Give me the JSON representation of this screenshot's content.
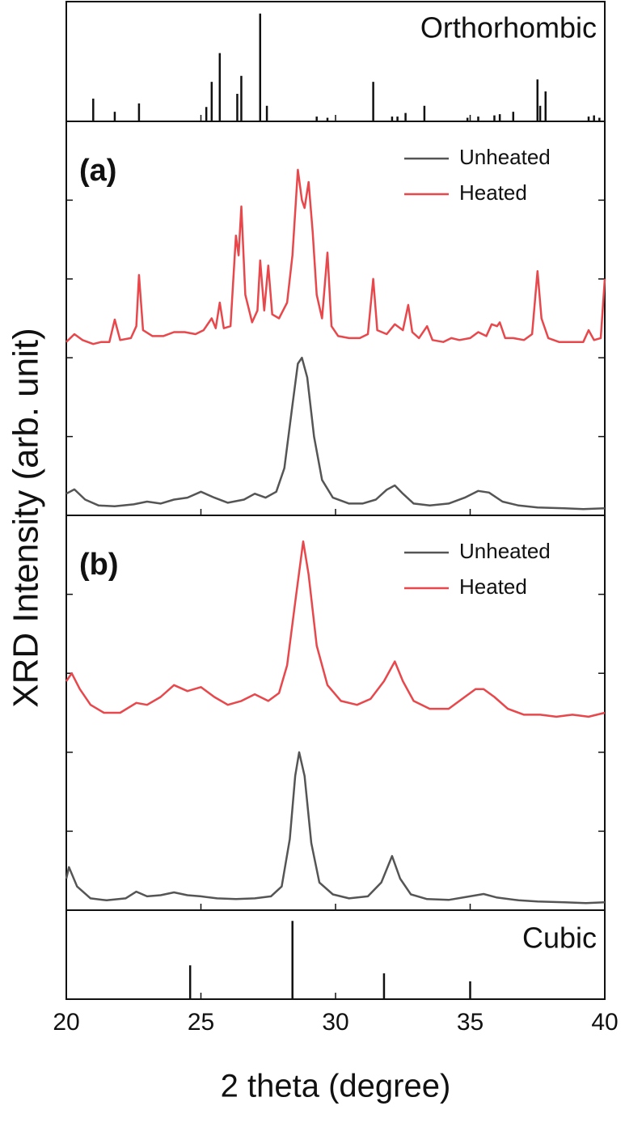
{
  "chart_data": [
    {
      "type": "stem",
      "title": "Orthorhombic",
      "ylabel": "XRD Intensity (arb. unit)",
      "xlim": [
        20,
        40
      ],
      "ylim": [
        0,
        100
      ],
      "color": "#111111",
      "x": [
        21.0,
        21.8,
        22.7,
        25.2,
        25.4,
        25.7,
        26.35,
        26.5,
        27.2,
        27.45,
        29.3,
        29.7,
        31.4,
        32.1,
        32.3,
        32.6,
        33.3,
        34.9,
        35.3,
        35.9,
        36.1,
        36.6,
        37.5,
        37.6,
        37.8,
        39.4,
        39.6,
        39.8
      ],
      "values": [
        19,
        8,
        15,
        12,
        33,
        57,
        23,
        38,
        90,
        13,
        4,
        3,
        33,
        4,
        4,
        7,
        13,
        3,
        4,
        5,
        6,
        8,
        35,
        13,
        25,
        4,
        5,
        3
      ]
    },
    {
      "type": "line",
      "title": "(a)",
      "xlim": [
        20,
        40
      ],
      "ylim": [
        0,
        100
      ],
      "yticks": [
        0,
        20,
        40,
        60,
        80,
        100
      ],
      "series": [
        {
          "name": "Unheated",
          "color": "#555555",
          "x": [
            20,
            20.3,
            20.7,
            21.2,
            21.8,
            22.5,
            23,
            23.5,
            24,
            24.5,
            25,
            25.5,
            26,
            26.6,
            27,
            27.4,
            27.8,
            28.1,
            28.4,
            28.6,
            28.75,
            28.95,
            29.2,
            29.5,
            29.9,
            30.5,
            31,
            31.5,
            31.9,
            32.2,
            32.5,
            32.9,
            33.5,
            34.2,
            34.8,
            35.3,
            35.7,
            36.2,
            36.8,
            37.5,
            38.5,
            39.2,
            40
          ],
          "values": [
            5.5,
            6.6,
            4,
            2.5,
            2.3,
            2.8,
            3.5,
            3,
            4,
            4.5,
            6,
            4.5,
            3.2,
            4,
            5.5,
            4.5,
            6,
            12,
            28,
            38.5,
            40,
            35,
            20,
            9,
            4.5,
            3,
            3,
            4,
            6.5,
            7.6,
            5.5,
            3,
            2.5,
            3,
            4.5,
            6.2,
            5.8,
            3.5,
            2.5,
            2,
            1.8,
            1.6,
            1.8
          ]
        },
        {
          "name": "Heated",
          "color": "#e8474b",
          "x": [
            20,
            20.3,
            20.6,
            21,
            21.3,
            21.6,
            21.8,
            22,
            22.4,
            22.6,
            22.7,
            22.85,
            23.2,
            23.6,
            24,
            24.4,
            24.8,
            25.1,
            25.4,
            25.55,
            25.7,
            25.85,
            26.1,
            26.3,
            26.4,
            26.5,
            26.65,
            26.9,
            27.1,
            27.2,
            27.35,
            27.5,
            27.65,
            27.9,
            28.2,
            28.4,
            28.6,
            28.75,
            28.85,
            29.0,
            29.15,
            29.3,
            29.5,
            29.7,
            29.85,
            30.1,
            30.5,
            30.9,
            31.2,
            31.4,
            31.55,
            31.9,
            32.2,
            32.5,
            32.7,
            32.85,
            33.1,
            33.4,
            33.6,
            34,
            34.3,
            34.6,
            35,
            35.3,
            35.6,
            35.8,
            36,
            36.1,
            36.3,
            36.6,
            37,
            37.3,
            37.5,
            37.65,
            37.9,
            38.3,
            38.8,
            39.2,
            39.4,
            39.6,
            39.85,
            40
          ],
          "values": [
            44,
            46,
            44.5,
            43.5,
            44,
            44,
            49.7,
            44.5,
            45,
            48,
            61,
            47,
            45.5,
            45.5,
            46.5,
            46.5,
            46,
            47,
            50,
            47.5,
            54,
            47.5,
            48,
            71,
            66,
            78.4,
            56,
            49,
            52,
            64.7,
            52,
            63.4,
            51,
            50,
            54,
            66,
            87.7,
            80,
            78,
            84.6,
            72,
            56,
            50,
            66.7,
            48,
            45.5,
            45,
            45,
            46,
            60,
            47,
            46,
            48.5,
            47,
            53.4,
            46.5,
            45,
            48,
            44.5,
            44,
            45,
            44.5,
            45,
            46.5,
            45.5,
            48.5,
            48,
            49,
            45,
            45,
            44.5,
            46,
            62,
            50,
            45,
            44,
            44,
            44,
            47,
            44.5,
            45,
            60
          ]
        }
      ]
    },
    {
      "type": "line",
      "title": "(b)",
      "xlim": [
        20,
        40
      ],
      "ylim": [
        0,
        100
      ],
      "yticks": [
        0,
        20,
        40,
        60,
        80,
        100
      ],
      "series": [
        {
          "name": "Unheated",
          "color": "#555555",
          "x": [
            20,
            20.1,
            20.4,
            20.9,
            21.5,
            22.2,
            22.6,
            23,
            23.5,
            24,
            24.5,
            25,
            25.6,
            26.3,
            27,
            27.6,
            28,
            28.3,
            28.5,
            28.65,
            28.85,
            29.1,
            29.4,
            29.9,
            30.5,
            31.2,
            31.7,
            32.1,
            32.4,
            32.8,
            33.4,
            34.2,
            34.9,
            35.5,
            36,
            36.8,
            37.5,
            38.5,
            39.3,
            40
          ],
          "values": [
            8,
            10.9,
            6,
            3,
            2.5,
            3,
            4.7,
            3.5,
            3.8,
            4.5,
            3.8,
            3.5,
            3,
            2.8,
            3,
            3.5,
            6,
            18,
            34,
            40,
            34,
            17,
            7,
            4,
            3,
            3.5,
            7,
            13.7,
            8,
            4,
            2.8,
            2.6,
            3.4,
            4.1,
            3.2,
            2.5,
            2.2,
            2,
            1.8,
            2
          ]
        },
        {
          "name": "Heated",
          "color": "#e8474b",
          "x": [
            20,
            20.2,
            20.5,
            20.9,
            21.4,
            22,
            22.6,
            23,
            23.5,
            24,
            24.5,
            25,
            25.5,
            26,
            26.5,
            27,
            27.5,
            27.9,
            28.2,
            28.5,
            28.8,
            29.0,
            29.3,
            29.7,
            30.2,
            30.8,
            31.3,
            31.8,
            32.2,
            32.5,
            32.9,
            33.5,
            34.2,
            34.8,
            35.2,
            35.5,
            35.9,
            36.4,
            37,
            37.6,
            38.2,
            38.8,
            39.4,
            40
          ],
          "values": [
            58,
            60,
            56,
            52,
            50,
            50,
            52.5,
            52,
            54,
            57,
            55.5,
            56.5,
            54,
            52,
            53,
            54.7,
            53,
            55,
            62,
            78,
            93.4,
            85,
            67,
            57,
            53,
            52,
            53.5,
            58,
            63,
            58,
            53,
            51,
            51,
            54,
            56,
            56,
            54,
            51,
            49.5,
            49.5,
            49,
            49.5,
            49,
            50
          ]
        }
      ]
    },
    {
      "type": "stem",
      "title": "Cubic",
      "xlabel": "2 theta (degree)",
      "xlim": [
        20,
        40
      ],
      "xticks": [
        20,
        25,
        30,
        35,
        40
      ],
      "ylim": [
        0,
        100
      ],
      "color": "#111111",
      "x": [
        24.6,
        28.4,
        31.8,
        35.0
      ],
      "values": [
        38,
        88,
        29,
        20
      ]
    }
  ]
}
